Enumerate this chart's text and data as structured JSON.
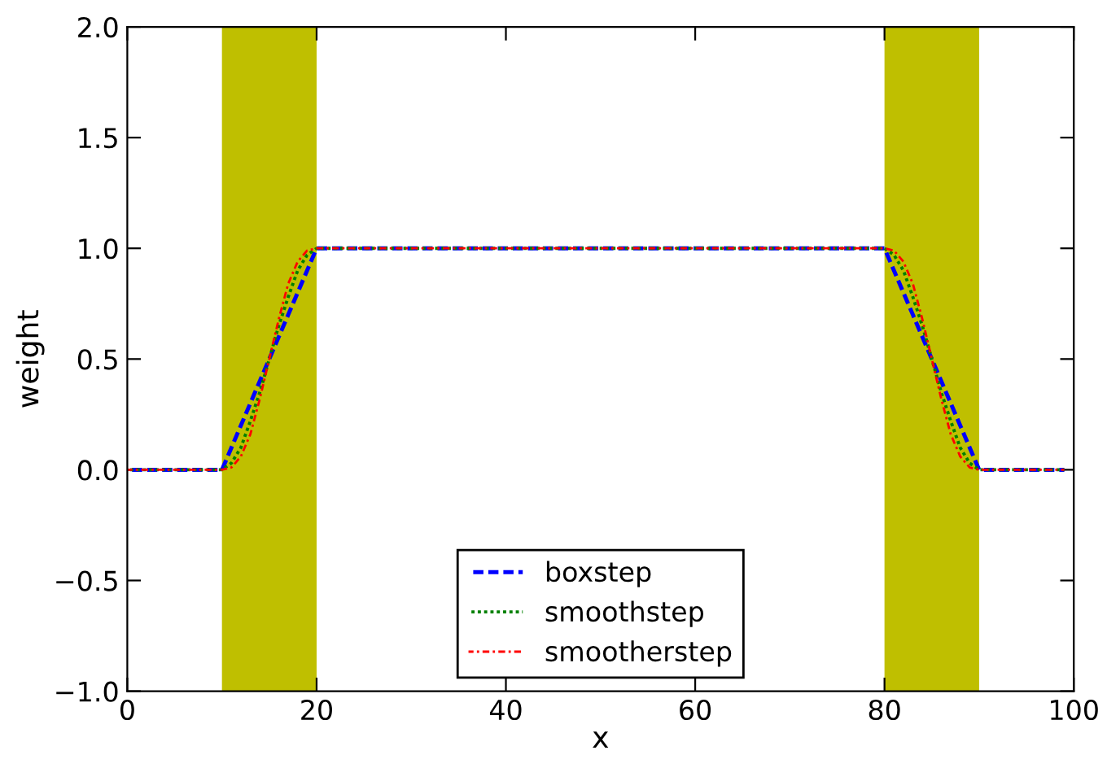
{
  "chart_data": {
    "type": "line",
    "xlabel": "x",
    "ylabel": "weight",
    "x": [
      0,
      10,
      11,
      12,
      13,
      14,
      15,
      16,
      17,
      18,
      19,
      20,
      80,
      81,
      82,
      83,
      84,
      85,
      86,
      87,
      88,
      89,
      90,
      99
    ],
    "series": [
      {
        "name": "boxstep",
        "color": "#0000ff",
        "line_style": "dashed",
        "values": [
          0,
          0,
          0.1,
          0.2,
          0.3,
          0.4,
          0.5,
          0.6,
          0.7,
          0.8,
          0.9,
          1,
          1,
          0.9,
          0.8,
          0.7,
          0.6,
          0.5,
          0.4,
          0.3,
          0.2,
          0.1,
          0,
          0
        ]
      },
      {
        "name": "smoothstep",
        "color": "#008000",
        "line_style": "dotted",
        "values": [
          0,
          0,
          0.03,
          0.1,
          0.22,
          0.35,
          0.5,
          0.65,
          0.78,
          0.9,
          0.97,
          1,
          1,
          0.97,
          0.9,
          0.78,
          0.65,
          0.5,
          0.35,
          0.22,
          0.1,
          0.03,
          0,
          0
        ]
      },
      {
        "name": "smootherstep",
        "color": "#ff0000",
        "line_style": "dashdot",
        "values": [
          0,
          0,
          0.01,
          0.06,
          0.16,
          0.32,
          0.5,
          0.68,
          0.84,
          0.94,
          0.99,
          1,
          1,
          0.99,
          0.94,
          0.84,
          0.68,
          0.5,
          0.32,
          0.16,
          0.06,
          0.01,
          0,
          0
        ]
      }
    ],
    "bands": [
      {
        "axis": "x",
        "from": 10,
        "to": 20,
        "color": "#bfbf00"
      },
      {
        "axis": "x",
        "from": 80,
        "to": 90,
        "color": "#bfbf00"
      }
    ],
    "xlim": [
      0,
      100
    ],
    "xticks": [
      0,
      20,
      40,
      60,
      80,
      100
    ],
    "ylim": [
      -1.0,
      2.0
    ],
    "yticks": [
      {
        "value": -1.0,
        "label": "−1.0"
      },
      {
        "value": -0.5,
        "label": "−0.5"
      },
      {
        "value": 0.0,
        "label": "0.0"
      },
      {
        "value": 0.5,
        "label": "0.5"
      },
      {
        "value": 1.0,
        "label": "1.0"
      },
      {
        "value": 1.5,
        "label": "1.5"
      },
      {
        "value": 2.0,
        "label": "2.0"
      }
    ],
    "grid": false,
    "legend": "bottom",
    "marker": "none"
  }
}
